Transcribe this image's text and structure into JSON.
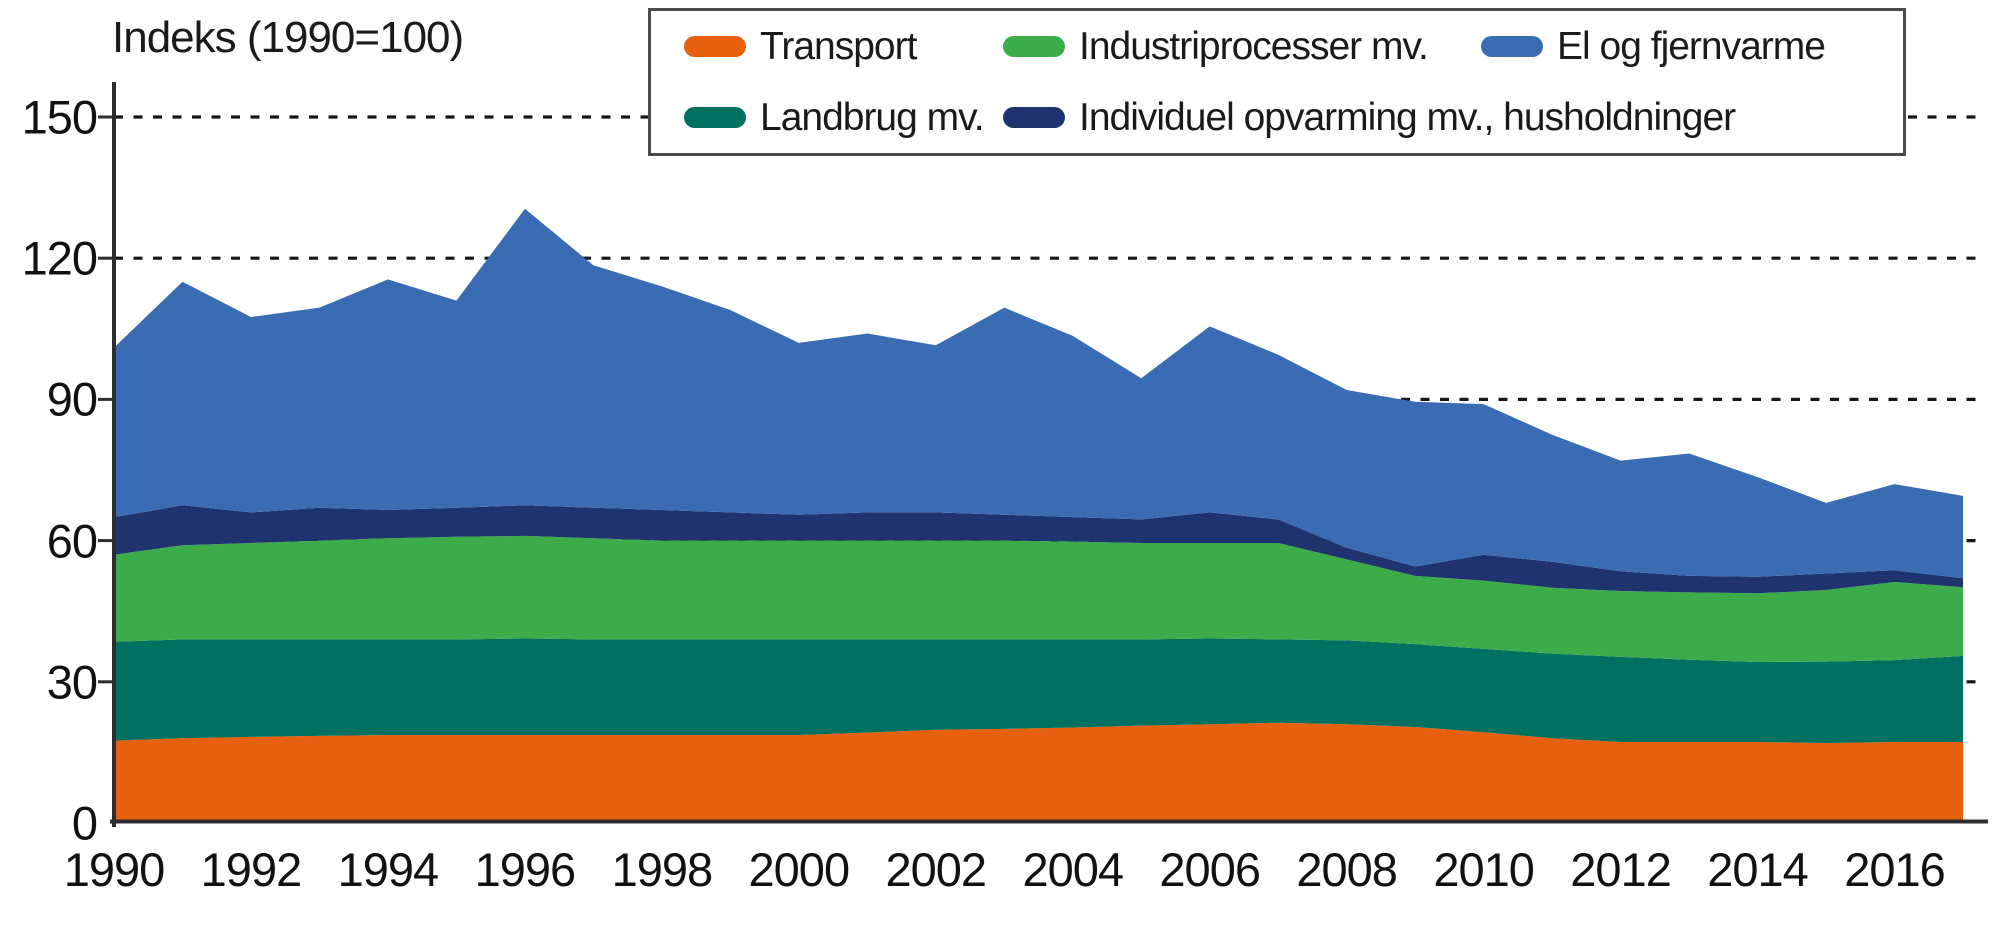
{
  "title": "Indeks (1990=100)",
  "style": {
    "background": "#FFFFFF",
    "text": "#1A1A1A",
    "axis": "#2D2D2D",
    "gridline": "#161616",
    "legend_border": "#4A4A4A"
  },
  "legend": {
    "rows": [
      [
        "transport",
        "industri",
        "el"
      ],
      [
        "landbrug",
        "individuel"
      ]
    ]
  },
  "chart_data": {
    "type": "area",
    "stacked": true,
    "title": "Indeks (1990=100)",
    "xlabel": "",
    "ylabel": "Indeks (1990=100)",
    "ylim": [
      0,
      150
    ],
    "y_ticks": [
      0,
      30,
      60,
      90,
      120,
      150
    ],
    "grid": "horizontal dotted lines at 30,60,90,120,150 drawn behind areas",
    "legend_position": "top-right boxed, two rows",
    "x": [
      1990,
      1991,
      1992,
      1993,
      1994,
      1995,
      1996,
      1997,
      1998,
      1999,
      2000,
      2001,
      2002,
      2003,
      2004,
      2005,
      2006,
      2007,
      2008,
      2009,
      2010,
      2011,
      2012,
      2013,
      2014,
      2015,
      2016,
      2017
    ],
    "x_tick_labels": [
      "1990",
      "1992",
      "1994",
      "1996",
      "1998",
      "2000",
      "2002",
      "2004",
      "2006",
      "2008",
      "2010",
      "2012",
      "2014",
      "2016"
    ],
    "series": [
      {
        "key": "transport",
        "name": "Transport",
        "color": "#E6600F",
        "values": [
          17.5,
          18,
          18.3,
          18.5,
          18.7,
          18.7,
          18.7,
          18.7,
          18.7,
          18.7,
          18.7,
          19.2,
          19.8,
          20,
          20.3,
          20.7,
          21,
          21.3,
          21,
          20.4,
          19.3,
          18,
          17.2,
          17.2,
          17.2,
          17,
          17.2,
          17.2
        ]
      },
      {
        "key": "landbrug",
        "name": "Landbrug mv.",
        "color": "#007060",
        "values": [
          21,
          21,
          20.7,
          20.5,
          20.3,
          20.3,
          20.5,
          20.3,
          20.3,
          20.3,
          20.3,
          19.8,
          19.2,
          19,
          18.7,
          18.3,
          18.2,
          17.7,
          17.8,
          17.6,
          17.7,
          18,
          18.1,
          17.5,
          17,
          17.3,
          17.4,
          18.3
        ]
      },
      {
        "key": "industri",
        "name": "Industriprocesser mv.",
        "color": "#3CAC4B",
        "values": [
          18.5,
          20,
          20.5,
          21,
          21.5,
          21.8,
          21.8,
          21.5,
          21,
          21,
          21,
          21,
          21,
          21,
          20.8,
          20.5,
          20.3,
          20.5,
          17.2,
          14.5,
          14.5,
          14,
          14,
          14.3,
          14.6,
          15.2,
          16.6,
          14.6
        ]
      },
      {
        "key": "individuel",
        "name": "Individuel opvarming mv., husholdninger",
        "color": "#1F336E",
        "values": [
          8,
          8.5,
          6.5,
          7,
          6,
          6.2,
          6.5,
          6.5,
          6.5,
          6,
          5.5,
          6,
          6,
          5.5,
          5.2,
          5,
          6.5,
          5,
          2.5,
          2,
          5.5,
          5.5,
          4.2,
          3.5,
          3.5,
          3.5,
          2.5,
          1.9
        ]
      },
      {
        "key": "el",
        "name": "El og fjernvarme",
        "color": "#3A6CB4",
        "values": [
          36,
          47.5,
          41.5,
          42.5,
          49,
          44,
          63,
          51.5,
          47.5,
          43,
          36.5,
          38,
          35.5,
          44,
          38.5,
          30,
          39.5,
          35,
          33.5,
          35,
          32,
          27,
          23.5,
          26,
          21.2,
          15,
          18.3,
          17.5
        ]
      }
    ],
    "stacked_totals_note": "stack order bottom-to-top: transport, landbrug, industri, individuel, el; total 1990 = 101, peak 1996 = 130.5, 2017 = 69.5"
  }
}
